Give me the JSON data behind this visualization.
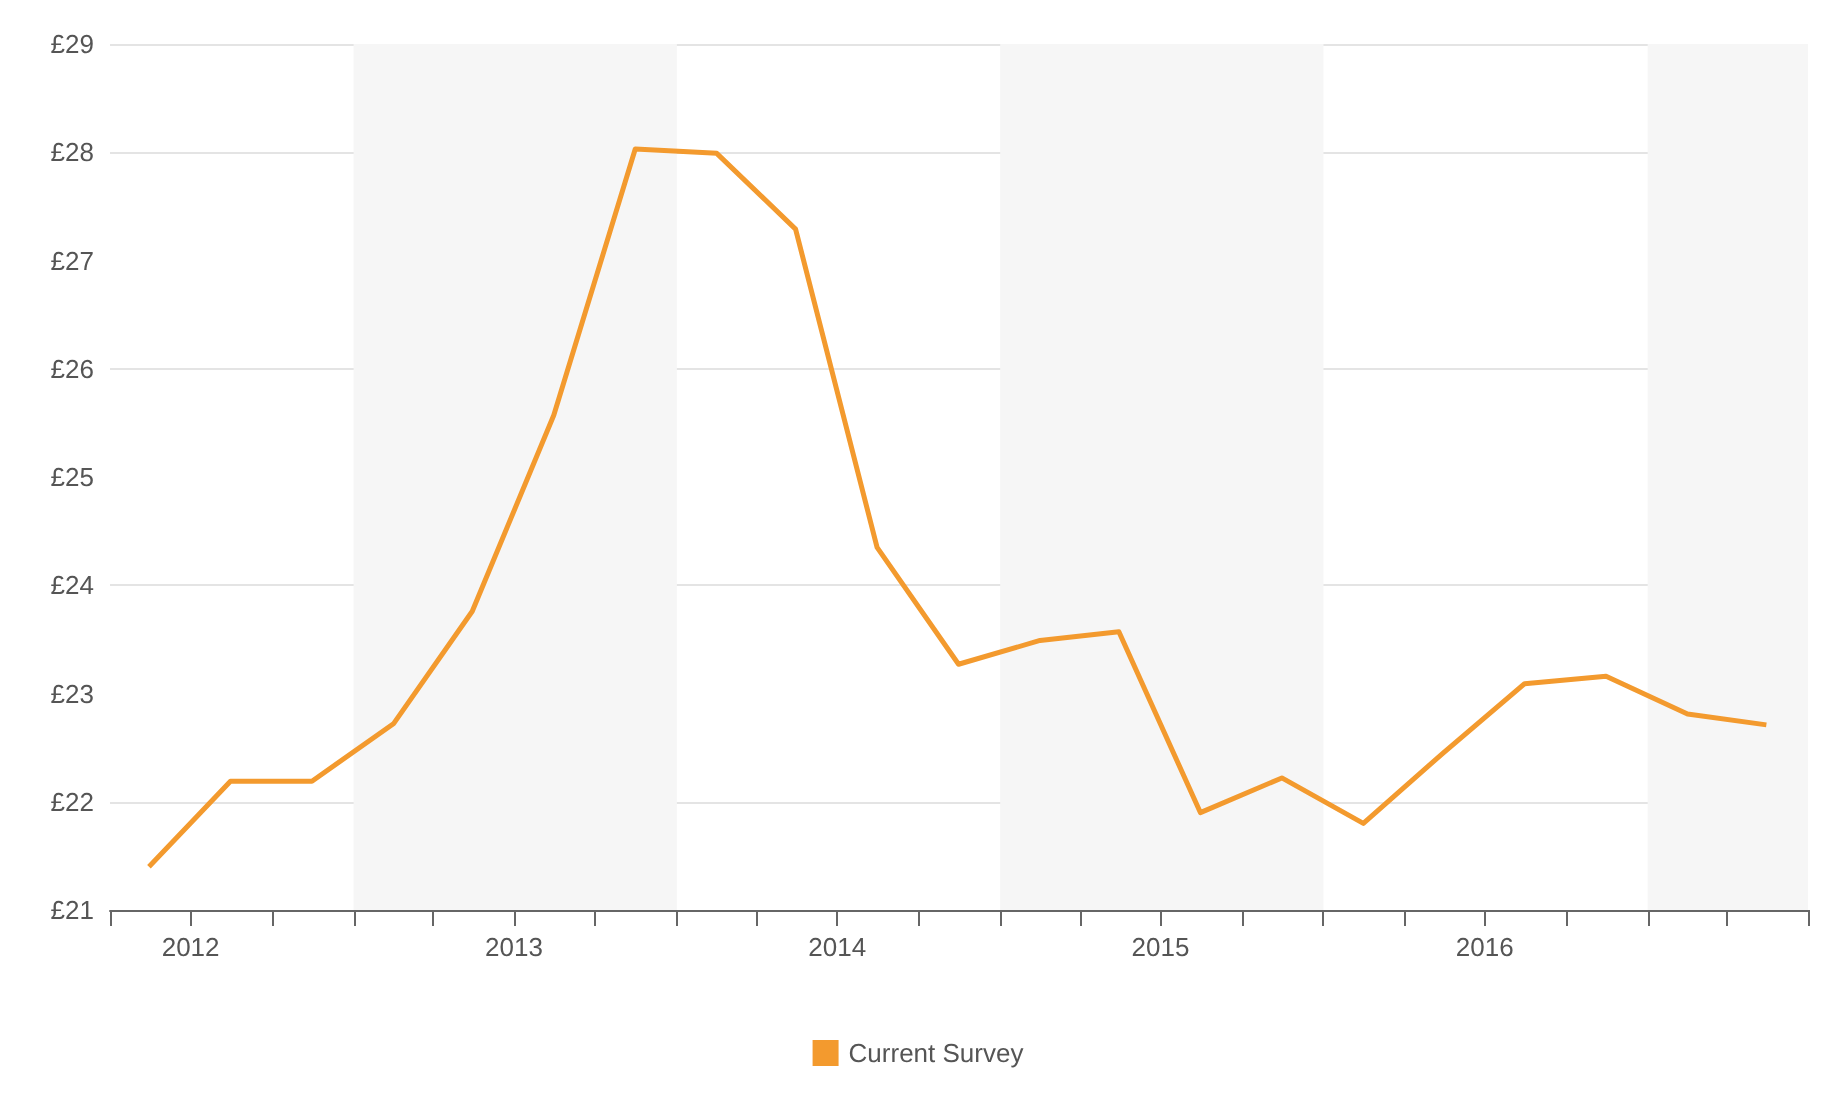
{
  "chart_data": {
    "type": "line",
    "x": [
      "2012-05-15",
      "2012-08-15",
      "2012-11-15",
      "2013-02-15",
      "2013-05-15",
      "2013-08-15",
      "2013-11-15",
      "2014-02-15",
      "2014-05-15",
      "2014-08-15",
      "2014-11-15",
      "2015-02-15",
      "2015-05-15",
      "2015-08-15",
      "2015-11-15",
      "2016-02-15",
      "2016-05-15",
      "2016-08-15",
      "2016-11-15",
      "2017-02-15",
      "2017-05-15"
    ],
    "series": [
      {
        "name": "Current Survey",
        "color": "#f39a2e",
        "values": [
          21.4,
          22.19,
          22.19,
          22.72,
          23.76,
          25.57,
          28.03,
          27.99,
          27.29,
          24.35,
          23.27,
          23.49,
          23.57,
          21.9,
          22.22,
          21.8,
          22.45,
          23.09,
          23.16,
          22.81,
          22.71
        ]
      }
    ],
    "xlim": [
      "2012-04-01",
      "2017-07-01"
    ],
    "xticks": [
      {
        "value": "2012-04-01",
        "label": null
      },
      {
        "value": "2012-07-01",
        "label": "2012"
      },
      {
        "value": "2012-10-01",
        "label": null
      },
      {
        "value": "2013-01-01",
        "label": null
      },
      {
        "value": "2013-04-01",
        "label": null
      },
      {
        "value": "2013-07-01",
        "label": "2013"
      },
      {
        "value": "2013-10-01",
        "label": null
      },
      {
        "value": "2014-01-01",
        "label": null
      },
      {
        "value": "2014-04-01",
        "label": null
      },
      {
        "value": "2014-07-01",
        "label": "2014"
      },
      {
        "value": "2014-10-01",
        "label": null
      },
      {
        "value": "2015-01-01",
        "label": null
      },
      {
        "value": "2015-04-01",
        "label": null
      },
      {
        "value": "2015-07-01",
        "label": "2015"
      },
      {
        "value": "2015-10-01",
        "label": null
      },
      {
        "value": "2016-01-01",
        "label": null
      },
      {
        "value": "2016-04-01",
        "label": null
      },
      {
        "value": "2016-07-01",
        "label": "2016"
      },
      {
        "value": "2016-10-01",
        "label": null
      },
      {
        "value": "2017-01-01",
        "label": null
      },
      {
        "value": "2017-04-01",
        "label": null
      },
      {
        "value": "2017-07-01",
        "label": null
      }
    ],
    "ylim": [
      21,
      29
    ],
    "yticks": [
      {
        "value": 21,
        "label": "£21"
      },
      {
        "value": 22,
        "label": "£22"
      },
      {
        "value": 23,
        "label": "£23"
      },
      {
        "value": 24,
        "label": "£24"
      },
      {
        "value": 25,
        "label": "£25"
      },
      {
        "value": 26,
        "label": "£26"
      },
      {
        "value": 27,
        "label": "£27"
      },
      {
        "value": 28,
        "label": "£28"
      },
      {
        "value": 29,
        "label": "£29"
      }
    ],
    "bands": [
      {
        "axis": "x",
        "from": "2013-01-01",
        "to": "2014-01-01",
        "color": "#f6f6f6"
      },
      {
        "axis": "x",
        "from": "2015-01-01",
        "to": "2016-01-01",
        "color": "#f6f6f6"
      },
      {
        "axis": "x",
        "from": "2017-01-01",
        "to": "2017-07-01",
        "color": "#f6f6f6"
      }
    ],
    "grid": "y",
    "legend": "bottom",
    "marker": "none",
    "line_style": "solid"
  }
}
